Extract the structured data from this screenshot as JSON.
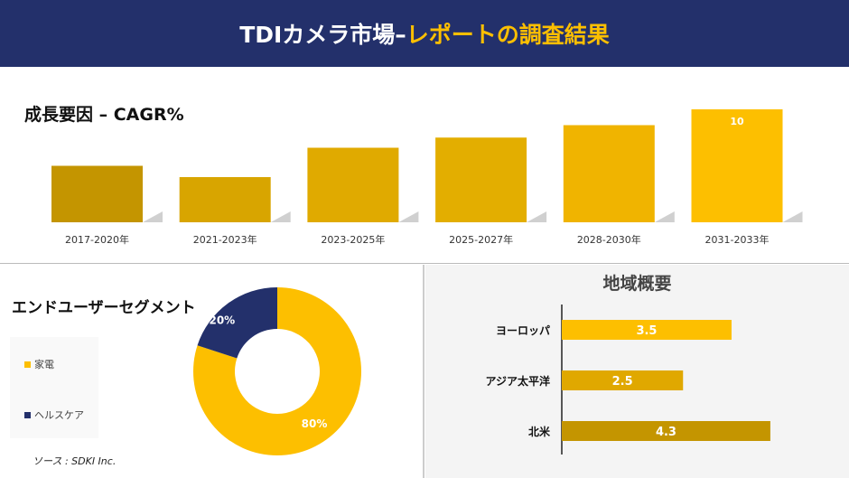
{
  "header": {
    "title_white": "TDIカメラ市場– ",
    "title_yellow": "レポートの調査結果",
    "bg": "#23306b",
    "accent": "#fdbf00"
  },
  "chart_data": [
    {
      "type": "bar",
      "title": "成長要因 – CAGR%",
      "categories": [
        "2017-2020年",
        "2021-2023年",
        "2023-2025年",
        "2025-2027年",
        "2028-2030年",
        "2031-2033年"
      ],
      "values": [
        5.0,
        4.0,
        6.6,
        7.5,
        8.6,
        10
      ],
      "data_labels": [
        null,
        null,
        null,
        null,
        null,
        "10"
      ],
      "colors": [
        "#c49500",
        "#d8a500",
        "#e0aa00",
        "#e3ae00",
        "#f0b400",
        "#fdbf00"
      ],
      "ylim": [
        0,
        10
      ]
    },
    {
      "type": "pie",
      "title": "エンドユーザーセグメント",
      "donut": true,
      "slices": [
        {
          "name": "家電",
          "value": 80,
          "label": "80%",
          "color": "#fdbf00"
        },
        {
          "name": "ヘルスケア",
          "value": 20,
          "label": "20%",
          "color": "#23306b"
        }
      ]
    },
    {
      "type": "bar",
      "orientation": "horizontal",
      "title": "地域概要",
      "categories": [
        "ヨーロッパ",
        "アジア太平洋",
        "北米"
      ],
      "values": [
        3.5,
        2.5,
        4.3
      ],
      "labels": [
        "3.5",
        "2.5",
        "4.3"
      ],
      "colors": [
        "#fdbf00",
        "#e0a800",
        "#c49500"
      ]
    }
  ],
  "source": "ソース : SDKI Inc."
}
